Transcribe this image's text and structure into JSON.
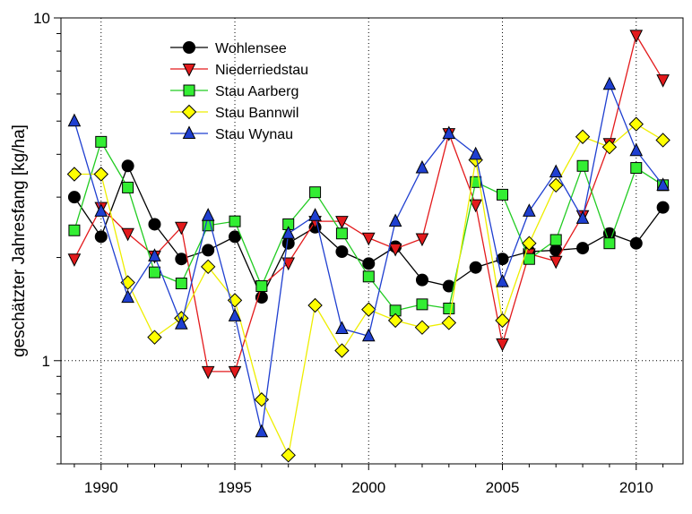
{
  "chart_data": {
    "type": "line",
    "title": "",
    "xlabel": "",
    "ylabel": "geschätzter Jahresfang [kg/ha]",
    "yscale": "log",
    "xlim": [
      1988.5,
      2011.75
    ],
    "ylim": [
      0.5,
      10
    ],
    "xticks": [
      1990,
      1995,
      2000,
      2005,
      2010
    ],
    "yticks": [
      1,
      10
    ],
    "grid": "dotted at major ticks",
    "legend_position": "top-left",
    "x": [
      1989,
      1990,
      1991,
      1992,
      1993,
      1994,
      1995,
      1996,
      1997,
      1998,
      1999,
      2000,
      2001,
      2002,
      2003,
      2004,
      2005,
      2006,
      2007,
      2008,
      2009,
      2010,
      2011
    ],
    "series": [
      {
        "name": "Wohlensee",
        "color": "#000000",
        "marker": "circle",
        "fill": "#000000",
        "values": [
          3.0,
          2.3,
          3.7,
          2.5,
          1.98,
          2.1,
          2.3,
          1.53,
          2.2,
          2.45,
          2.08,
          1.92,
          2.15,
          1.72,
          1.65,
          1.87,
          1.98,
          2.08,
          2.1,
          2.13,
          2.35,
          2.2,
          2.8
        ]
      },
      {
        "name": "Niederriedstau",
        "color": "#e31a1c",
        "marker": "triangle-down",
        "fill": "#e31a1c",
        "values": [
          1.98,
          2.8,
          2.35,
          2.02,
          2.45,
          0.93,
          0.93,
          1.65,
          1.93,
          2.55,
          2.55,
          2.28,
          2.12,
          2.27,
          4.6,
          2.85,
          1.12,
          2.05,
          1.95,
          2.65,
          4.3,
          8.9,
          6.6
        ]
      },
      {
        "name": "Stau Aarberg",
        "color": "#22cc22",
        "marker": "square",
        "fill": "#33ee33",
        "values": [
          2.4,
          4.35,
          3.2,
          1.81,
          1.68,
          2.48,
          2.55,
          1.65,
          2.5,
          3.1,
          2.35,
          1.76,
          1.4,
          1.46,
          1.42,
          3.32,
          3.05,
          1.98,
          2.25,
          3.7,
          2.2,
          3.65,
          3.25
        ]
      },
      {
        "name": "Stau Bannwil",
        "color": "#eeee00",
        "marker": "diamond",
        "fill": "#ffff00",
        "values": [
          3.5,
          3.5,
          1.69,
          1.17,
          1.33,
          1.88,
          1.5,
          0.77,
          0.53,
          1.45,
          1.07,
          1.41,
          1.31,
          1.25,
          1.29,
          3.85,
          1.31,
          2.2,
          3.25,
          4.5,
          4.2,
          4.9,
          4.4
        ]
      },
      {
        "name": "Stau Wynau",
        "color": "#1f3fd0",
        "marker": "triangle-up",
        "fill": "#1f3fd0",
        "values": [
          5.0,
          2.73,
          1.53,
          2.02,
          1.28,
          2.65,
          1.35,
          0.62,
          2.35,
          2.65,
          1.24,
          1.18,
          2.55,
          3.65,
          4.6,
          4.0,
          1.7,
          2.73,
          3.55,
          2.6,
          6.4,
          4.1,
          3.25
        ]
      }
    ]
  }
}
